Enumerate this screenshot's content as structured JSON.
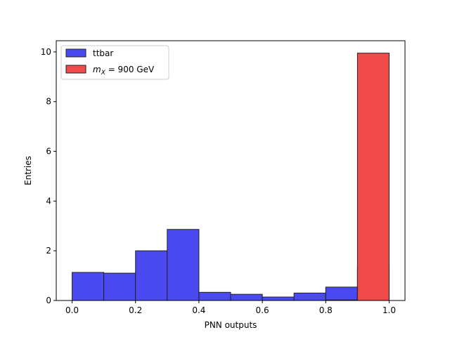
{
  "chart_data": {
    "type": "bar",
    "title": "",
    "xlabel": "PNN outputs",
    "ylabel": "Entries",
    "xlim": [
      -0.05,
      1.05
    ],
    "ylim": [
      0,
      10.45
    ],
    "bin_edges": [
      0.0,
      0.1,
      0.2,
      0.3,
      0.4,
      0.5,
      0.6,
      0.7,
      0.8,
      0.9,
      1.0
    ],
    "xticks": [
      "0.0",
      "0.2",
      "0.4",
      "0.6",
      "0.8",
      "1.0"
    ],
    "yticks": [
      "0",
      "2",
      "4",
      "6",
      "8",
      "10"
    ],
    "legend_position": "top-left",
    "series": [
      {
        "name": "ttbar",
        "color": "#4a4af0",
        "values": [
          1.13,
          1.1,
          2.0,
          2.86,
          0.33,
          0.25,
          0.14,
          0.3,
          0.54,
          1.3
        ]
      },
      {
        "name_prefix": "m",
        "name_subscript": "X",
        "name_suffix": " = 900 GeV",
        "color": "#f04a4a",
        "values": [
          0,
          0,
          0,
          0,
          0,
          0,
          0,
          0,
          0.02,
          9.95
        ]
      }
    ]
  }
}
